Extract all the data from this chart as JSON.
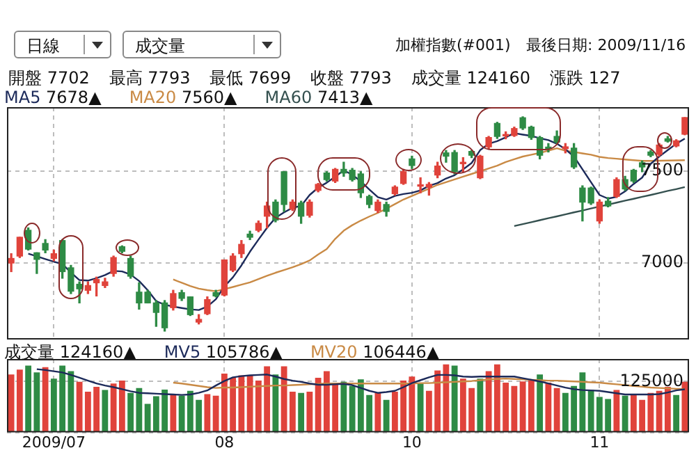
{
  "chart_data": [
    {
      "type": "candlestick",
      "title": "加權指數(#001)",
      "subtitle": "最後日期: 2009/11/16",
      "annotations": [
        "日線",
        "成交量",
        "開盤 7702",
        "最高 7793",
        "最低 7699",
        "收盤 7793",
        "成交量 124160",
        "漲跌 127",
        "7678▲",
        "7560▲",
        "7413▲"
      ],
      "categories": [
        null,
        null,
        null,
        null,
        null,
        "2009/07",
        null,
        null,
        null,
        null,
        null,
        null,
        null,
        null,
        null,
        null,
        null,
        null,
        null,
        null,
        null,
        null,
        null,
        null,
        null,
        "08",
        null,
        null,
        null,
        null,
        null,
        null,
        null,
        null,
        null,
        null,
        null,
        null,
        null,
        null,
        null,
        null,
        null,
        null,
        null,
        null,
        null,
        "10",
        null,
        null,
        null,
        null,
        null,
        null,
        null,
        null,
        null,
        null,
        null,
        null,
        null,
        null,
        null,
        null,
        null,
        null,
        null,
        null,
        null,
        "11",
        null,
        null,
        null,
        null,
        null,
        null,
        null,
        null,
        null,
        null
      ],
      "ohlc": [
        [
          6998,
          7049,
          6951,
          7023
        ],
        [
          7036,
          7139,
          7028,
          7139
        ],
        [
          7177,
          7190,
          7069,
          7074
        ],
        [
          7054,
          7054,
          6941,
          7018
        ],
        [
          7105,
          7126,
          7054,
          7069
        ],
        [
          7023,
          7069,
          7010,
          7049
        ],
        [
          7121,
          7126,
          6915,
          6951
        ],
        [
          6972,
          6985,
          6831,
          6844
        ],
        [
          6882,
          6895,
          6780,
          6857
        ],
        [
          6849,
          6895,
          6831,
          6875
        ],
        [
          6890,
          6921,
          6818,
          6908
        ],
        [
          6875,
          6915,
          6864,
          6895
        ],
        [
          6941,
          7036,
          6926,
          7028
        ],
        [
          7087,
          7092,
          7054,
          7062
        ],
        [
          7023,
          7036,
          6915,
          6926
        ],
        [
          6839,
          6890,
          6746,
          6780
        ],
        [
          6839,
          6849,
          6780,
          6780
        ],
        [
          6780,
          6793,
          6652,
          6728
        ],
        [
          6780,
          6793,
          6626,
          6644
        ],
        [
          6754,
          6849,
          6741,
          6831
        ],
        [
          6836,
          6849,
          6793,
          6805
        ],
        [
          6813,
          6813,
          6711,
          6716
        ],
        [
          6675,
          6716,
          6665,
          6690
        ],
        [
          6721,
          6813,
          6716,
          6798
        ],
        [
          6836,
          6849,
          6813,
          6818
        ],
        [
          6823,
          7015,
          6818,
          7015
        ],
        [
          6959,
          7049,
          6951,
          7036
        ],
        [
          7049,
          7121,
          7028,
          7100
        ],
        [
          7156,
          7172,
          7126,
          7139
        ],
        [
          7177,
          7228,
          7169,
          7215
        ],
        [
          7254,
          7331,
          7190,
          7310
        ],
        [
          7331,
          7343,
          7223,
          7233
        ],
        [
          7497,
          7497,
          7280,
          7318
        ],
        [
          7292,
          7343,
          7285,
          7331
        ],
        [
          7326,
          7336,
          7215,
          7254
        ],
        [
          7259,
          7343,
          7249,
          7331
        ],
        [
          7395,
          7433,
          7387,
          7428
        ],
        [
          7490,
          7497,
          7446,
          7454
        ],
        [
          7446,
          7515,
          7438,
          7510
        ],
        [
          7510,
          7549,
          7472,
          7490
        ],
        [
          7505,
          7515,
          7446,
          7454
        ],
        [
          7485,
          7497,
          7356,
          7382
        ],
        [
          7362,
          7369,
          7300,
          7318
        ],
        [
          7285,
          7343,
          7274,
          7331
        ],
        [
          7318,
          7331,
          7254,
          7280
        ],
        [
          7377,
          7420,
          7369,
          7413
        ],
        [
          7433,
          7510,
          7428,
          7497
        ],
        [
          7567,
          7582,
          7515,
          7531
        ],
        [
          7418,
          7464,
          7382,
          7422
        ],
        [
          7413,
          7438,
          7369,
          7428
        ],
        [
          7479,
          7549,
          7464,
          7528
        ],
        [
          7600,
          7613,
          7549,
          7582
        ],
        [
          7602,
          7613,
          7485,
          7497
        ],
        [
          7541,
          7574,
          7497,
          7543
        ],
        [
          7608,
          7613,
          7574,
          7587
        ],
        [
          7464,
          7587,
          7459,
          7582
        ],
        [
          7633,
          7690,
          7623,
          7684
        ],
        [
          7761,
          7767,
          7679,
          7690
        ],
        [
          7693,
          7715,
          7677,
          7697
        ],
        [
          7695,
          7741,
          7690,
          7733
        ],
        [
          7792,
          7797,
          7728,
          7736
        ],
        [
          7741,
          7746,
          7674,
          7684
        ],
        [
          7684,
          7690,
          7567,
          7587
        ],
        [
          7628,
          7651,
          7605,
          7624
        ],
        [
          7690,
          7720,
          7651,
          7659
        ],
        [
          7623,
          7651,
          7600,
          7633
        ],
        [
          7626,
          7651,
          7515,
          7523
        ],
        [
          7408,
          7420,
          7228,
          7331
        ],
        [
          7408,
          7413,
          7318,
          7326
        ],
        [
          7228,
          7343,
          7215,
          7331
        ],
        [
          7336,
          7356,
          7305,
          7310
        ],
        [
          7362,
          7464,
          7356,
          7454
        ],
        [
          7454,
          7472,
          7395,
          7403
        ],
        [
          7505,
          7510,
          7438,
          7446
        ],
        [
          7546,
          7556,
          7497,
          7523
        ],
        [
          7605,
          7613,
          7579,
          7587
        ],
        [
          7592,
          7651,
          7582,
          7643
        ],
        [
          7677,
          7690,
          7659,
          7664
        ],
        [
          7638,
          7672,
          7633,
          7666
        ],
        [
          7702,
          7793,
          7699,
          7793
        ]
      ],
      "colors": [
        "#e0433b",
        "#e0433b",
        "#2e8b45",
        "#2e8b45",
        "#2e8b45",
        "#e0433b",
        "#2e8b45",
        "#2e8b45",
        "#2e8b45",
        "#e0433b",
        "#e0433b",
        "#e0433b",
        "#e0433b",
        "#2e8b45",
        "#2e8b45",
        "#2e8b45",
        "#2e8b45",
        "#2e8b45",
        "#2e8b45",
        "#e0433b",
        "#2e8b45",
        "#2e8b45",
        "#e0433b",
        "#e0433b",
        "#2e8b45",
        "#e0433b",
        "#e0433b",
        "#e0433b",
        "#2e8b45",
        "#e0433b",
        "#e0433b",
        "#2e8b45",
        "#2e8b45",
        "#e0433b",
        "#2e8b45",
        "#e0433b",
        "#e0433b",
        "#2e8b45",
        "#e0433b",
        "#2e8b45",
        "#2e8b45",
        "#2e8b45",
        "#2e8b45",
        "#e0433b",
        "#2e8b45",
        "#e0433b",
        "#e0433b",
        "#2e8b45",
        "#e0433b",
        "#e0433b",
        "#e0433b",
        "#2e8b45",
        "#2e8b45",
        "#e0433b",
        "#2e8b45",
        "#e0433b",
        "#e0433b",
        "#2e8b45",
        "#e0433b",
        "#e0433b",
        "#2e8b45",
        "#2e8b45",
        "#2e8b45",
        "#2e8b45",
        "#2e8b45",
        "#e0433b",
        "#2e8b45",
        "#2e8b45",
        "#2e8b45",
        "#e0433b",
        "#2e8b45",
        "#e0433b",
        "#2e8b45",
        "#2e8b45",
        "#2e8b45",
        "#2e8b45",
        "#e0433b",
        "#2e8b45",
        "#e0433b",
        "#e0433b"
      ],
      "series": [
        {
          "name": "MA5",
          "type": "line",
          "color": "#1c2a5a",
          "values": [
            null,
            null,
            7049,
            7035,
            7020,
            7005,
            6993,
            6946,
            6905,
            6902,
            6915,
            6932,
            6955,
            6952,
            6935,
            6900,
            6850,
            6790,
            6770,
            6760,
            6752,
            6745,
            6741,
            6760,
            6800,
            6870,
            6920,
            6985,
            7060,
            7126,
            7190,
            7245,
            7275,
            7300,
            7310,
            7370,
            7410,
            7437,
            7470,
            7505,
            7480,
            7445,
            7400,
            7358,
            7345,
            7365,
            7375,
            7382,
            7395,
            7420,
            7435,
            7460,
            7478,
            7510,
            7545,
            7615,
            7650,
            7664,
            7685,
            7708,
            7700,
            7693,
            7680,
            7670,
            7650,
            7620,
            7580,
            7510,
            7440,
            7370,
            7350,
            7360,
            7390,
            7430,
            7465,
            7540,
            7580,
            7615,
            7650,
            7678
          ]
        },
        {
          "name": "MA20",
          "type": "line",
          "color": "#c98a45",
          "values": [
            null,
            null,
            null,
            null,
            null,
            null,
            null,
            null,
            null,
            null,
            null,
            null,
            null,
            null,
            null,
            null,
            null,
            null,
            null,
            6908,
            6890,
            6872,
            6858,
            6850,
            6844,
            6855,
            6867,
            6880,
            6892,
            6910,
            6928,
            6945,
            6960,
            6975,
            6992,
            7012,
            7045,
            7074,
            7130,
            7175,
            7205,
            7230,
            7252,
            7272,
            7295,
            7320,
            7345,
            7365,
            7385,
            7405,
            7425,
            7440,
            7455,
            7470,
            7485,
            7500,
            7515,
            7530,
            7550,
            7565,
            7580,
            7590,
            7600,
            7612,
            7625,
            7612,
            7605,
            7597,
            7590,
            7578,
            7572,
            7568,
            7564,
            7560,
            7556,
            7556,
            7557,
            7558,
            7559,
            7560
          ]
        },
        {
          "name": "MA60",
          "type": "line",
          "color": "#34504f",
          "values": [
            null,
            null,
            null,
            null,
            null,
            null,
            null,
            null,
            null,
            null,
            null,
            null,
            null,
            null,
            null,
            null,
            null,
            null,
            null,
            null,
            null,
            null,
            null,
            null,
            null,
            null,
            null,
            null,
            null,
            null,
            null,
            null,
            null,
            null,
            null,
            null,
            null,
            null,
            null,
            null,
            null,
            null,
            null,
            null,
            null,
            null,
            null,
            null,
            null,
            null,
            null,
            null,
            null,
            null,
            null,
            null,
            null,
            null,
            null,
            7200,
            7211,
            7221,
            7232,
            7243,
            7253,
            7264,
            7275,
            7285,
            7296,
            7307,
            7317,
            7328,
            7339,
            7349,
            7360,
            7370,
            7381,
            7392,
            7402,
            7413
          ]
        }
      ],
      "ylim": [
        6580,
        7850
      ],
      "yticks": [
        7000,
        7500
      ],
      "grid": true,
      "legend": "top left",
      "tick_labels": "y",
      "marker": "none"
    },
    {
      "type": "bar",
      "annotations": [
        "124160▲",
        "105786▲",
        "106446▲"
      ],
      "categories": [
        null,
        null,
        null,
        null,
        null,
        "2009/07",
        null,
        null,
        null,
        null,
        null,
        null,
        null,
        null,
        null,
        null,
        null,
        null,
        null,
        null,
        null,
        null,
        null,
        null,
        null,
        "08",
        null,
        null,
        null,
        null,
        null,
        null,
        null,
        null,
        null,
        null,
        null,
        null,
        null,
        null,
        null,
        null,
        null,
        null,
        null,
        null,
        null,
        "10",
        null,
        null,
        null,
        null,
        null,
        null,
        null,
        null,
        null,
        null,
        null,
        null,
        null,
        null,
        null,
        null,
        null,
        null,
        null,
        null,
        null,
        "11",
        null,
        null,
        null,
        null,
        null,
        null,
        null,
        null,
        null,
        null
      ],
      "series": [
        {
          "name": "成交量",
          "type": "bar",
          "colors": [
            "#e0433b",
            "#e0433b",
            "#2e8b45",
            "#2e8b45",
            "#e0433b",
            "#2e8b45",
            "#2e8b45",
            "#2e8b45",
            "#e0433b",
            "#e0433b",
            "#e0433b",
            "#2e8b45",
            "#e0433b",
            "#e0433b",
            "#2e8b45",
            "#2e8b45",
            "#2e8b45",
            "#2e8b45",
            "#2e8b45",
            "#e0433b",
            "#2e8b45",
            "#2e8b45",
            "#2e8b45",
            "#e0433b",
            "#e0433b",
            "#e0433b",
            "#e0433b",
            "#e0433b",
            "#e0433b",
            "#e0433b",
            "#e0433b",
            "#2e8b45",
            "#e0433b",
            "#e0433b",
            "#2e8b45",
            "#e0433b",
            "#e0433b",
            "#e0433b",
            "#e0433b",
            "#2e8b45",
            "#2e8b45",
            "#2e8b45",
            "#2e8b45",
            "#e0433b",
            "#2e8b45",
            "#e0433b",
            "#e0433b",
            "#e0433b",
            "#2e8b45",
            "#e0433b",
            "#e0433b",
            "#e0433b",
            "#2e8b45",
            "#e0433b",
            "#e0433b",
            "#2e8b45",
            "#e0433b",
            "#e0433b",
            "#e0433b",
            "#e0433b",
            "#e0433b",
            "#e0433b",
            "#2e8b45",
            "#e0433b",
            "#e0433b",
            "#2e8b45",
            "#2e8b45",
            "#2e8b45",
            "#2e8b45",
            "#2e8b45",
            "#2e8b45",
            "#e0433b",
            "#2e8b45",
            "#e0433b",
            "#e0433b",
            "#e0433b",
            "#e0433b",
            "#e0433b",
            "#2e8b45",
            "#e0433b"
          ],
          "values": [
            142000,
            154000,
            164000,
            147000,
            160000,
            132000,
            164000,
            150000,
            124000,
            100000,
            112000,
            104000,
            120000,
            127000,
            97000,
            109000,
            70000,
            89000,
            105000,
            94000,
            90000,
            102000,
            80000,
            94000,
            90000,
            144000,
            134000,
            140000,
            140000,
            127000,
            162000,
            142000,
            162000,
            100000,
            97000,
            100000,
            134000,
            150000,
            120000,
            124000,
            114000,
            130000,
            92000,
            97000,
            80000,
            100000,
            127000,
            137000,
            120000,
            102000,
            152000,
            167000,
            164000,
            132000,
            109000,
            132000,
            150000,
            167000,
            122000,
            114000,
            125000,
            127000,
            142000,
            122000,
            109000,
            97000,
            114000,
            147000,
            104000,
            87000,
            82000,
            104000,
            90000,
            94000,
            80000,
            97000,
            102000,
            112000,
            92000,
            124160
          ]
        },
        {
          "name": "MV5",
          "type": "line",
          "color": "#1c2a5a",
          "values": [
            null,
            null,
            null,
            155000,
            153000,
            150000,
            147000,
            141000,
            134000,
            127000,
            120000,
            115000,
            111000,
            106000,
            101000,
            97000,
            96000,
            95000,
            94000,
            93000,
            92000,
            93000,
            97000,
            103000,
            115000,
            126000,
            135000,
            138000,
            140000,
            141000,
            142000,
            137000,
            131000,
            127000,
            124000,
            120000,
            117000,
            117000,
            118000,
            119000,
            116000,
            109000,
            102000,
            97000,
            99000,
            102000,
            111000,
            121000,
            128000,
            135000,
            141000,
            141000,
            140000,
            137000,
            136000,
            137000,
            137000,
            137000,
            137000,
            137000,
            133000,
            129000,
            125000,
            120000,
            115000,
            110000,
            106000,
            104000,
            103000,
            102000,
            99000,
            96000,
            93000,
            93000,
            93000,
            93000,
            94000,
            98000,
            103000,
            105786
          ]
        },
        {
          "name": "MV20",
          "type": "line",
          "color": "#c98a45",
          "values": [
            null,
            null,
            null,
            null,
            null,
            null,
            null,
            null,
            null,
            null,
            null,
            null,
            null,
            null,
            null,
            null,
            null,
            null,
            null,
            122000,
            120000,
            117000,
            114000,
            111000,
            109000,
            110000,
            110000,
            111000,
            112000,
            113000,
            114000,
            115000,
            115000,
            116000,
            117000,
            118000,
            119000,
            120000,
            120000,
            120000,
            120000,
            120000,
            120000,
            120000,
            120000,
            120000,
            120000,
            120000,
            121000,
            121000,
            122000,
            123000,
            124000,
            125000,
            126000,
            128000,
            130000,
            131000,
            132000,
            131000,
            130000,
            129000,
            128000,
            127000,
            127000,
            126000,
            125000,
            124000,
            123000,
            122000,
            120000,
            118000,
            116000,
            114000,
            112000,
            110000,
            109000,
            108000,
            107000,
            106446
          ]
        }
      ],
      "ylim": [
        0,
        180000
      ],
      "yticks": [
        {
          "value": 0,
          "label": null
        },
        125000
      ],
      "grid": true,
      "legend": "top left",
      "marker": "none"
    }
  ]
}
